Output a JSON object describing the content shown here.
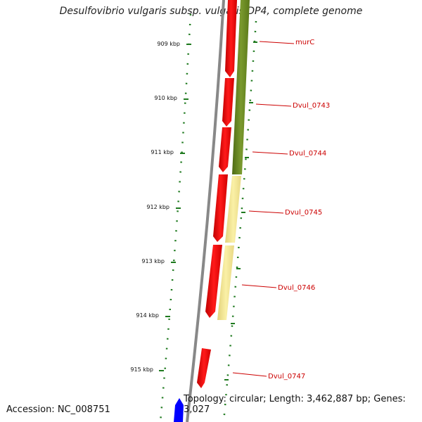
{
  "title": "Desulfovibrio vulgaris subsp. vulgaris DP4, complete genome",
  "accession": "Accession: NC_008751",
  "topology": "Topology: circular; Length: 3,462,887 bp; Genes: 3,027",
  "ticks": [
    "909 kbp",
    "910 kbp",
    "911 kbp",
    "912 kbp",
    "913 kbp",
    "914 kbp",
    "915 kbp"
  ],
  "gene_labels": [
    "murC",
    "Dvul_0743",
    "Dvul_0744",
    "Dvul_0745",
    "Dvul_0746",
    "Dvul_0747"
  ],
  "colors": {
    "gene": "#ff0000",
    "gene_label": "#cc0000",
    "backbone": "#888888",
    "tick": "#1f7a1f",
    "olive": "#6b8e23",
    "khaki": "#f0e68c",
    "blue": "#0000ff"
  }
}
